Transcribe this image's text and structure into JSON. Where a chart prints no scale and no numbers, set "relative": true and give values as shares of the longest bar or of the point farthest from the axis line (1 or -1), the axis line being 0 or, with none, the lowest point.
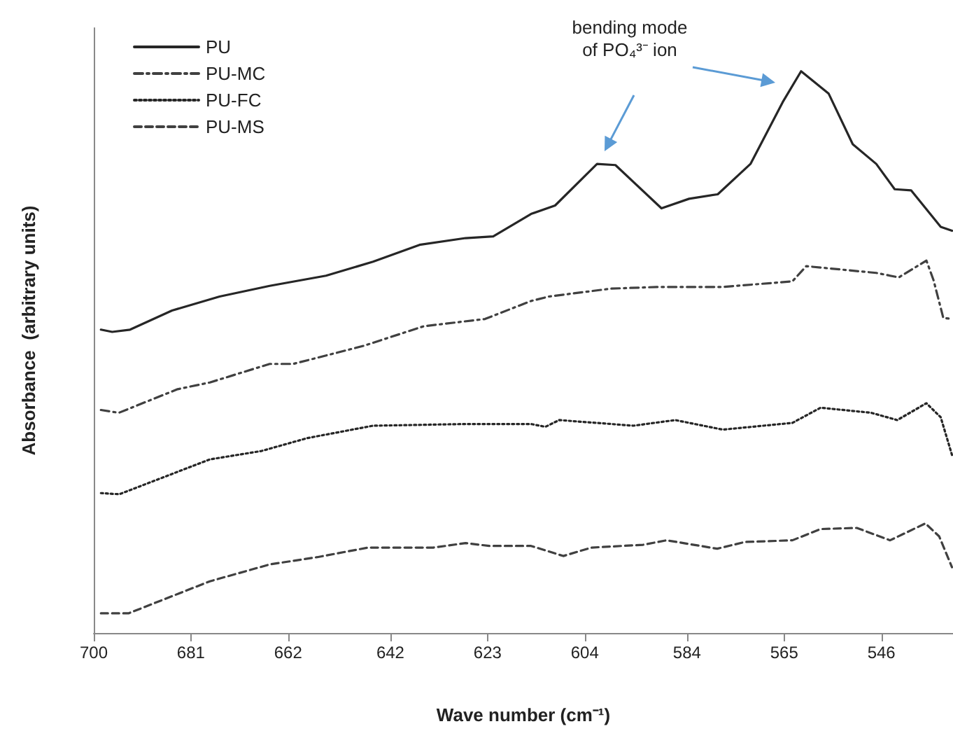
{
  "chart_data": {
    "type": "line",
    "relative": true,
    "xlabel": "Wave number (cm⁻¹)",
    "ylabel": "Absorbance  (arbitrary units)",
    "xlim": [
      700,
      532
    ],
    "xticks": [
      700,
      681,
      662,
      642,
      623,
      604,
      584,
      565,
      546
    ],
    "legend": "top left",
    "marker": "none",
    "grid": false,
    "annotations": [
      "bending mode of PO₄³⁻ ion"
    ],
    "series": [
      {
        "name": "PU",
        "color": "#262626",
        "line_style": "solid",
        "x": [
          698.6,
          696.4,
          692.9,
          684.7,
          675.4,
          665.6,
          654.6,
          645.4,
          636.3,
          627.3,
          621.9,
          614.5,
          609.8,
          601.6,
          598,
          589,
          583.6,
          578,
          571.6,
          565.3,
          561.7,
          556.3,
          551.6,
          547,
          543.4,
          540.2,
          534.4,
          532.2
        ],
        "values": [
          0.54,
          0.536,
          0.54,
          0.574,
          0.599,
          0.618,
          0.636,
          0.661,
          0.691,
          0.703,
          0.706,
          0.746,
          0.761,
          0.835,
          0.833,
          0.756,
          0.773,
          0.781,
          0.835,
          0.945,
          1.0,
          0.96,
          0.87,
          0.835,
          0.79,
          0.788,
          0.723,
          0.716
        ]
      },
      {
        "name": "PU-MC",
        "color": "#404040",
        "line_style": "dashdot",
        "x": [
          698.6,
          695.1,
          683.6,
          677.3,
          665.6,
          661,
          647.3,
          635.5,
          623.5,
          614.5,
          611,
          598.9,
          589.9,
          577,
          563.4,
          560.7,
          547,
          542.6,
          537.2,
          535.8,
          533.9,
          532.2
        ],
        "values": [
          0.397,
          0.392,
          0.434,
          0.446,
          0.479,
          0.479,
          0.511,
          0.546,
          0.559,
          0.591,
          0.599,
          0.613,
          0.616,
          0.616,
          0.626,
          0.653,
          0.641,
          0.633,
          0.663,
          0.628,
          0.561,
          0.559
        ]
      },
      {
        "name": "PU-FC",
        "color": "#262626",
        "line_style": "dotted",
        "x": [
          698.6,
          695,
          677.3,
          667.2,
          658.2,
          645.4,
          627.3,
          614.5,
          611.7,
          609,
          594.5,
          586.3,
          577,
          563.4,
          557.9,
          548,
          542.9,
          537.2,
          534.4,
          532.2
        ],
        "values": [
          0.249,
          0.247,
          0.309,
          0.324,
          0.347,
          0.369,
          0.372,
          0.372,
          0.367,
          0.379,
          0.369,
          0.379,
          0.362,
          0.374,
          0.401,
          0.392,
          0.379,
          0.409,
          0.384,
          0.317
        ]
      },
      {
        "name": "PU-MS",
        "color": "#404040",
        "line_style": "dashed",
        "x": [
          698.6,
          693.2,
          677.3,
          665.6,
          656.3,
          646.4,
          633.6,
          627.3,
          622.7,
          614.5,
          608.2,
          602.7,
          592.6,
          588,
          578.1,
          572.7,
          563.4,
          557.9,
          550.8,
          544.3,
          537.4,
          534.7,
          532.2
        ],
        "values": [
          0.035,
          0.035,
          0.092,
          0.122,
          0.135,
          0.152,
          0.152,
          0.16,
          0.155,
          0.155,
          0.137,
          0.152,
          0.157,
          0.165,
          0.15,
          0.162,
          0.165,
          0.185,
          0.187,
          0.165,
          0.195,
          0.172,
          0.117
        ]
      }
    ]
  }
}
